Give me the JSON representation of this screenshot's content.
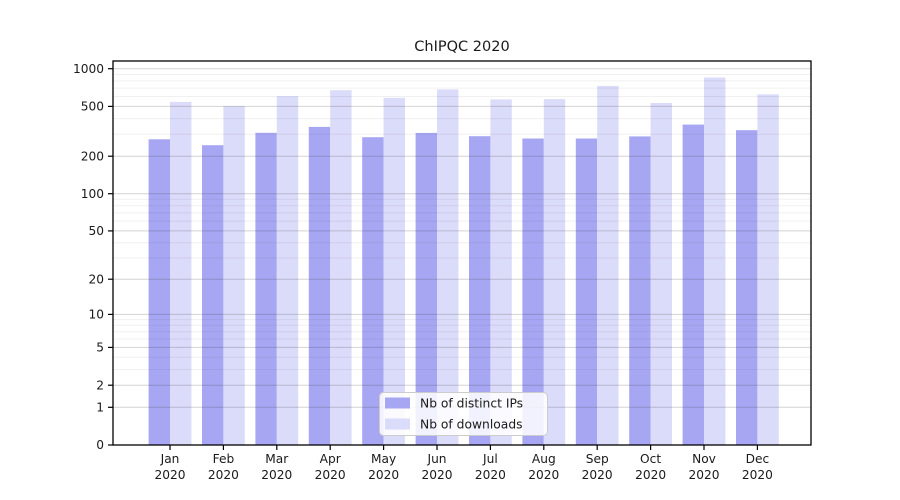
{
  "chart_data": {
    "type": "bar",
    "title": "ChIPQC 2020",
    "scale": "log1p",
    "grid": true,
    "legend_position": "bottom-center-inside",
    "categories": [
      [
        "Jan",
        "2020"
      ],
      [
        "Feb",
        "2020"
      ],
      [
        "Mar",
        "2020"
      ],
      [
        "Apr",
        "2020"
      ],
      [
        "May",
        "2020"
      ],
      [
        "Jun",
        "2020"
      ],
      [
        "Jul",
        "2020"
      ],
      [
        "Aug",
        "2020"
      ],
      [
        "Sep",
        "2020"
      ],
      [
        "Oct",
        "2020"
      ],
      [
        "Nov",
        "2020"
      ],
      [
        "Dec",
        "2020"
      ]
    ],
    "series": [
      {
        "name": "Nb of distinct IPs",
        "color": "#a6a6f3",
        "values": [
          273,
          245,
          308,
          343,
          284,
          307,
          289,
          277,
          277,
          288,
          358,
          323
        ]
      },
      {
        "name": "Nb of downloads",
        "color": "#dbdbfa",
        "values": [
          544,
          503,
          605,
          674,
          586,
          684,
          569,
          572,
          730,
          533,
          851,
          625
        ]
      }
    ],
    "yticks": [
      0,
      1,
      2,
      5,
      10,
      20,
      50,
      100,
      200,
      500,
      1000
    ],
    "minor_yticks": [
      3,
      4,
      6,
      7,
      8,
      9,
      30,
      40,
      60,
      70,
      80,
      90,
      300,
      400,
      600,
      700,
      800,
      900
    ],
    "ylim": [
      0,
      1150
    ],
    "xlabel": "",
    "ylabel": "",
    "colors": {
      "axis": "#000000",
      "major_grid": "rgba(60,60,60,0.22)",
      "minor_grid": "rgba(60,60,60,0.08)",
      "text": "#1a1a1a"
    }
  }
}
